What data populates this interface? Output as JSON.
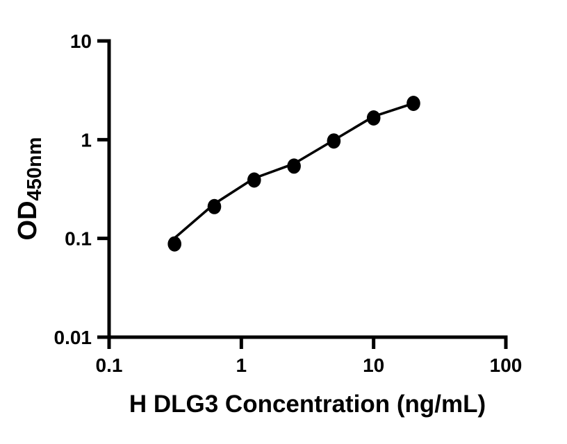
{
  "figure": {
    "background": "#ffffff"
  },
  "style": {
    "axis_color": "#000000",
    "text_color": "#000000",
    "marker_color": "#000000",
    "curve_color": "#000000"
  },
  "chart_data": {
    "type": "scatter",
    "title": "",
    "xlabel": "H DLG3 Concentration (ng/mL)",
    "ylabel": {
      "main": "OD",
      "sub": "450nm"
    },
    "x_scale": "log",
    "y_scale": "log",
    "xlim": [
      0.1,
      100
    ],
    "ylim": [
      0.01,
      10
    ],
    "grid": false,
    "legend": "none",
    "x_ticks": {
      "values": [
        0.1,
        1,
        10,
        100
      ],
      "labels": [
        "0.1",
        "1",
        "10",
        "100"
      ]
    },
    "y_ticks": {
      "values": [
        0.01,
        0.1,
        1,
        10
      ],
      "labels": [
        "0.01",
        "0.1",
        "1",
        "10"
      ]
    },
    "series": [
      {
        "marker": "filled-circle",
        "color": "#000000",
        "points": [
          {
            "x": 0.3125,
            "y": 0.088
          },
          {
            "x": 0.625,
            "y": 0.21
          },
          {
            "x": 1.25,
            "y": 0.39
          },
          {
            "x": 2.5,
            "y": 0.54
          },
          {
            "x": 5,
            "y": 0.97
          },
          {
            "x": 10,
            "y": 1.66
          },
          {
            "x": 20,
            "y": 2.33
          }
        ]
      }
    ],
    "fit_curve": [
      [
        0.3125,
        0.101
      ],
      [
        0.625,
        0.224
      ],
      [
        1.25,
        0.407
      ],
      [
        2.5,
        0.571
      ],
      [
        5,
        0.99
      ],
      [
        10,
        1.72
      ],
      [
        20,
        2.33
      ]
    ]
  }
}
